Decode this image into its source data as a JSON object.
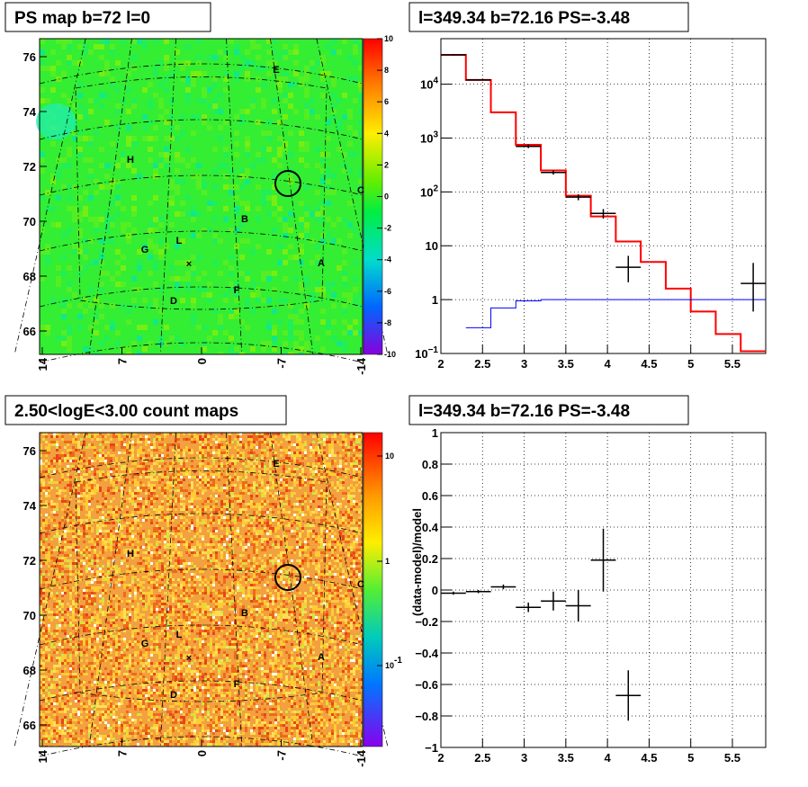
{
  "panels": {
    "ps_map": {
      "title": "PS map b=72 l=0",
      "y_ticks": [
        "76",
        "74",
        "72",
        "70",
        "68",
        "66"
      ],
      "x_ticks": [
        "14",
        "7",
        "0",
        "-7",
        "-14"
      ],
      "colorbar_ticks": [
        "10",
        "8",
        "6",
        "4",
        "2",
        "0",
        "-2",
        "-4",
        "-6",
        "-8",
        "-10"
      ],
      "region_labels": [
        "E",
        "H",
        "C",
        "B",
        "L",
        "G",
        "A",
        "F",
        "D"
      ],
      "marker": "×"
    },
    "spectrum": {
      "title": "l=349.34 b=72.16 PS=-3.48",
      "x_ticks": [
        "2",
        "2.5",
        "3",
        "3.5",
        "4",
        "4.5",
        "5",
        "5.5"
      ],
      "y_ticks": [
        {
          "base": "10",
          "exp": "4"
        },
        {
          "base": "10",
          "exp": "3"
        },
        {
          "base": "10",
          "exp": "2"
        },
        {
          "base": "10",
          "exp": ""
        },
        {
          "base": "1",
          "exp": ""
        },
        {
          "base": "10",
          "exp": "−1"
        }
      ]
    },
    "count_map": {
      "title": "2.50<logE<3.00 count maps",
      "y_ticks": [
        "76",
        "74",
        "72",
        "70",
        "68",
        "66"
      ],
      "x_ticks": [
        "14",
        "7",
        "0",
        "-7",
        "-14"
      ],
      "colorbar_ticks": [
        {
          "base": "10",
          "exp": ""
        },
        {
          "base": "1",
          "exp": ""
        },
        {
          "base": "10",
          "exp": "-1"
        }
      ],
      "region_labels": [
        "E",
        "H",
        "C",
        "B",
        "L",
        "G",
        "A",
        "F",
        "D"
      ],
      "marker": "×"
    },
    "residual": {
      "title": "l=349.34 b=72.16 PS=-3.48",
      "ylabel": "(data-model)/model",
      "x_ticks": [
        "2",
        "2.5",
        "3",
        "3.5",
        "4",
        "4.5",
        "5",
        "5.5"
      ],
      "y_ticks": [
        "1",
        "0.8",
        "0.6",
        "0.4",
        "0.2",
        "0",
        "−0.2",
        "−0.4",
        "−0.6",
        "−0.8",
        "−1"
      ]
    }
  },
  "colors": {
    "model_total": "#ff0000",
    "model_component": "#0000ff",
    "data": "#000000",
    "ps_map_background": "#33ee33",
    "count_map_background": "#f2a040"
  },
  "chart_data": [
    {
      "type": "heatmap",
      "title": "PS map b=72 l=0",
      "xlabel": "",
      "ylabel": "",
      "xlim": [
        14,
        -14
      ],
      "ylim": [
        65.3,
        76.8
      ],
      "colorbar_range": [
        -10,
        10
      ],
      "dominant_value_approx": 0,
      "source_circle": {
        "l": -8,
        "b": 71.5
      }
    },
    {
      "type": "line",
      "title": "l=349.34 b=72.16 PS=-3.48",
      "log_y": true,
      "xlim": [
        2,
        5.9
      ],
      "ylim": [
        0.1,
        70000
      ],
      "series": [
        {
          "kind": "step",
          "bin_edges": [
            2,
            2.3,
            2.6,
            2.9,
            3.2,
            3.5,
            3.8,
            4.1,
            4.4,
            4.7,
            5.0,
            5.3,
            5.6,
            5.9
          ],
          "values": [
            35000,
            12000,
            3000,
            750,
            250,
            85,
            35,
            12,
            5,
            1.6,
            0.6,
            0.23,
            0.11
          ]
        },
        {
          "kind": "step",
          "bin_edges": [
            2.3,
            2.6,
            2.9,
            3.2,
            5.9
          ],
          "values": [
            0.3,
            0.7,
            0.95,
            1.0
          ]
        },
        {
          "kind": "points",
          "x": [
            2.15,
            2.45,
            3.05,
            3.35,
            3.65,
            3.95,
            4.25,
            5.75
          ],
          "y": [
            35000,
            12000,
            700,
            230,
            80,
            40,
            4,
            2
          ],
          "x_err": 0.15,
          "y_low": [
            34000,
            11700,
            650,
            210,
            70,
            32,
            2.1,
            0.6
          ],
          "y_high": [
            36000,
            12300,
            760,
            250,
            90,
            48,
            6.5,
            4.8
          ]
        }
      ]
    },
    {
      "type": "heatmap",
      "title": "2.50<logE<3.00 count maps",
      "xlabel": "",
      "ylabel": "",
      "xlim": [
        14,
        -14
      ],
      "ylim": [
        65.3,
        76.8
      ],
      "log_color": true,
      "colorbar_range": [
        0.03,
        20
      ],
      "dominant_value_approx": 3,
      "source_circle": {
        "l": -8,
        "b": 71.5
      }
    },
    {
      "type": "scatter",
      "title": "l=349.34 b=72.16 PS=-3.48",
      "ylabel": "(data-model)/model",
      "xlim": [
        2,
        5.9
      ],
      "ylim": [
        -1,
        1
      ],
      "grid": true,
      "x": [
        2.15,
        2.45,
        2.75,
        3.05,
        3.35,
        3.65,
        3.95,
        4.25
      ],
      "y": [
        -0.02,
        -0.01,
        0.02,
        -0.11,
        -0.07,
        -0.1,
        0.19,
        -0.67
      ],
      "x_err": 0.15,
      "y_err": [
        0.01,
        0.01,
        0.015,
        0.03,
        0.06,
        0.1,
        0.2,
        0.16
      ]
    }
  ]
}
